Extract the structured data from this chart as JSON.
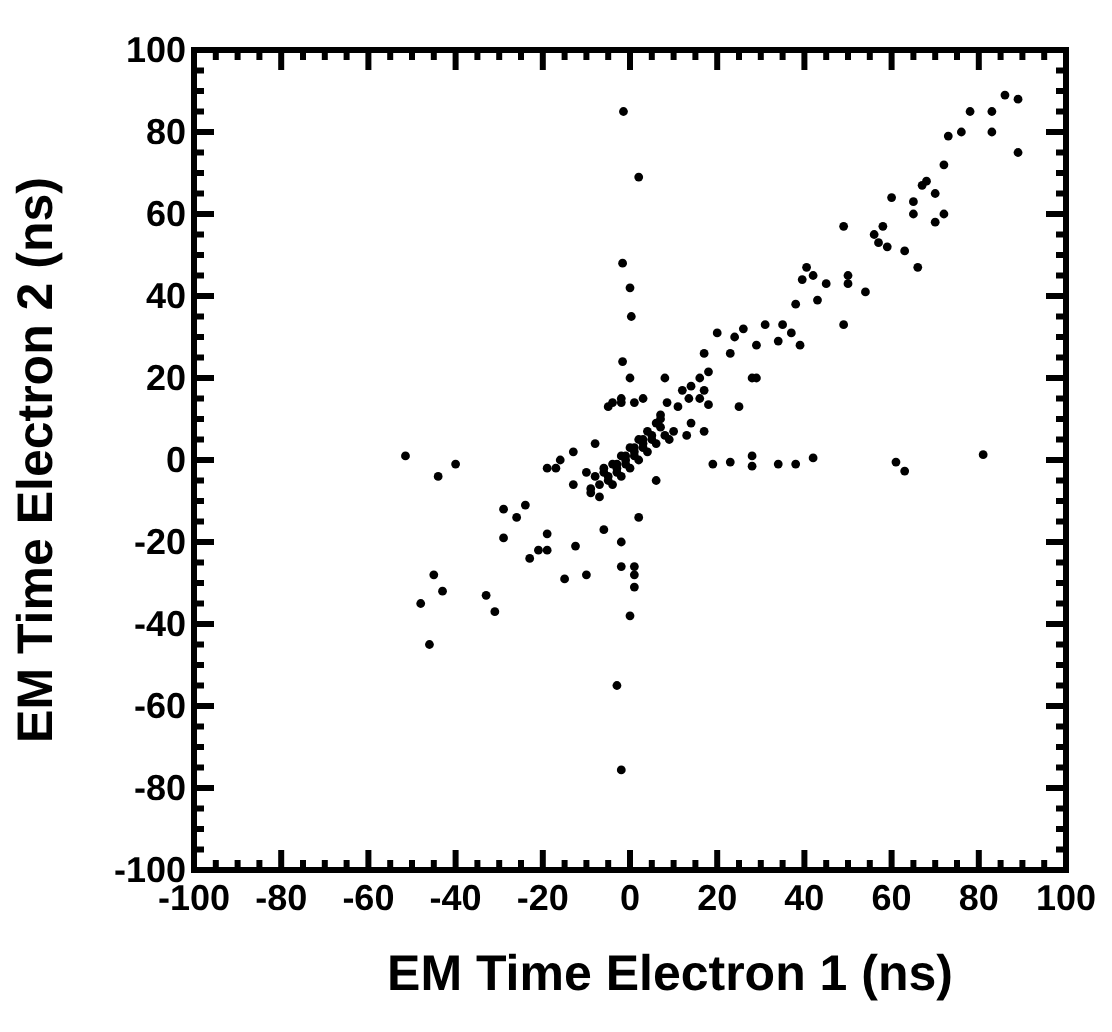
{
  "chart_data": {
    "type": "scatter",
    "xlabel": "EM Time Electron 1 (ns)",
    "ylabel": "EM Time Electron 2 (ns)",
    "xlim": [
      -100,
      100
    ],
    "ylim": [
      -100,
      100
    ],
    "xticks": [
      -100,
      -80,
      -60,
      -40,
      -20,
      0,
      20,
      40,
      60,
      80,
      100
    ],
    "yticks": [
      -100,
      -80,
      -60,
      -40,
      -20,
      0,
      20,
      40,
      60,
      80,
      100
    ],
    "grid": false,
    "marker": "circle",
    "series": [
      {
        "color": "#000000",
        "x": [
          -1.5,
          2,
          -1.7,
          0,
          0.3,
          -1.7,
          0,
          8,
          -4,
          -2,
          1,
          3,
          8.5,
          12,
          14,
          13.5,
          16,
          18,
          17,
          20,
          23,
          24,
          26,
          29,
          28,
          31,
          34,
          35,
          37,
          39,
          38,
          39.5,
          40.5,
          42,
          43,
          45,
          49,
          49,
          50,
          50,
          54,
          56,
          58,
          57,
          59,
          60,
          63,
          65,
          65,
          66,
          67,
          68,
          70,
          70,
          72,
          72,
          73,
          76,
          78,
          83,
          83,
          86,
          89,
          89,
          29,
          25,
          18,
          16,
          17,
          -51.5,
          -40,
          -44,
          19,
          23,
          28,
          28,
          34,
          38,
          42,
          61,
          63,
          81,
          -29,
          -26,
          -24,
          -29,
          -23,
          -21,
          -19,
          -19,
          -15,
          -10,
          -12.5,
          -6,
          -2,
          1,
          1,
          2,
          -2,
          -43,
          -31,
          -5,
          -2,
          7,
          11,
          14,
          17,
          13,
          -13,
          -16,
          -19,
          -13,
          -9,
          -17,
          -45,
          -48,
          -46,
          -33,
          1,
          0,
          -3,
          -2,
          -8,
          -6,
          -4,
          -2,
          0,
          2,
          4,
          6,
          8,
          -7,
          -5,
          -3,
          -1,
          1,
          3,
          5,
          7,
          -6,
          -4,
          -2,
          0,
          2,
          4,
          6,
          -5,
          -3,
          -1,
          1,
          3,
          5,
          -3,
          -1,
          1,
          3,
          -9,
          9,
          -10,
          10,
          -8,
          -7,
          6,
          7
        ],
        "values": [
          85,
          69,
          48,
          42,
          35,
          24,
          20,
          20,
          14,
          15,
          14,
          15,
          14,
          17,
          18,
          15,
          20,
          21.5,
          26,
          31,
          26,
          30,
          32,
          28,
          20,
          33,
          29,
          33,
          31,
          28,
          38,
          44,
          47,
          45,
          39,
          43,
          57,
          33,
          45,
          43,
          41,
          55,
          57,
          53,
          52,
          64,
          51,
          63,
          60,
          47,
          67,
          68,
          65,
          58,
          72,
          60,
          79,
          80,
          85,
          85,
          80,
          89,
          88,
          75,
          20,
          13,
          13.5,
          15,
          17,
          1,
          -1,
          -4,
          -1,
          -0.5,
          1,
          -1.5,
          -1,
          -1,
          0.5,
          -0.5,
          -2.7,
          1.3,
          -12,
          -14,
          -11,
          -19,
          -24,
          -22,
          -18,
          -22,
          -29,
          -28,
          -21,
          -17,
          -26,
          -26,
          -31,
          -14,
          -20,
          -32,
          -37,
          13,
          14,
          11,
          13,
          9,
          7,
          6,
          2,
          0,
          -2,
          -6,
          -8,
          -2,
          -28,
          -35,
          -45,
          -33,
          -28,
          -38,
          -55,
          -75.6,
          -4,
          -2,
          -6,
          -4,
          -2,
          0,
          2,
          4,
          6,
          -6,
          -4,
          -2,
          0,
          2,
          4,
          6,
          8,
          -3,
          -1,
          1,
          3,
          5,
          7,
          9,
          -5,
          -3,
          -1,
          1,
          3,
          5,
          -1,
          1,
          3,
          5,
          -7,
          5,
          -3,
          7,
          4,
          -9,
          -5,
          10
        ]
      }
    ]
  }
}
